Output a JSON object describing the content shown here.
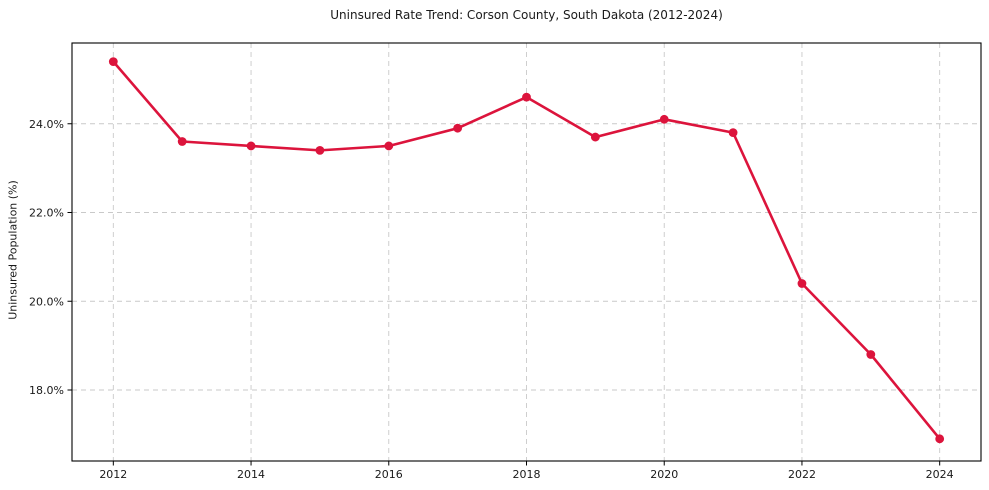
{
  "title": "Uninsured Rate Trend: Corson County, South Dakota (2012-2024)",
  "colors": {
    "line": "#dc143c",
    "marker": "#dc143c",
    "grid": "#c9c9c9",
    "spine": "#000000",
    "text": "#1a1a1a",
    "background": "#ffffff"
  },
  "chart_data": {
    "type": "line",
    "title": "Uninsured Rate Trend: Corson County, South Dakota (2012-2024)",
    "xlabel": "",
    "ylabel": "Uninsured Population (%)",
    "x": [
      2012,
      2013,
      2014,
      2015,
      2016,
      2017,
      2018,
      2019,
      2020,
      2021,
      2022,
      2023,
      2024
    ],
    "values": [
      25.4,
      23.6,
      23.5,
      23.4,
      23.5,
      23.9,
      24.6,
      23.7,
      24.1,
      23.8,
      20.4,
      18.8,
      16.9
    ],
    "xlim": [
      2011.4,
      2024.6
    ],
    "ylim": [
      16.4,
      25.82
    ],
    "xticks": {
      "values": [
        2012,
        2014,
        2016,
        2018,
        2020,
        2022,
        2024
      ],
      "labels": [
        "2012",
        "2014",
        "2016",
        "2018",
        "2020",
        "2022",
        "2024"
      ]
    },
    "yticks": {
      "values": [
        18,
        20,
        22,
        24
      ],
      "labels": [
        "18.0%",
        "20.0%",
        "22.0%",
        "24.0%"
      ]
    },
    "grid": true,
    "grid_style": "dashed",
    "legend": "none",
    "marker": "circle"
  }
}
